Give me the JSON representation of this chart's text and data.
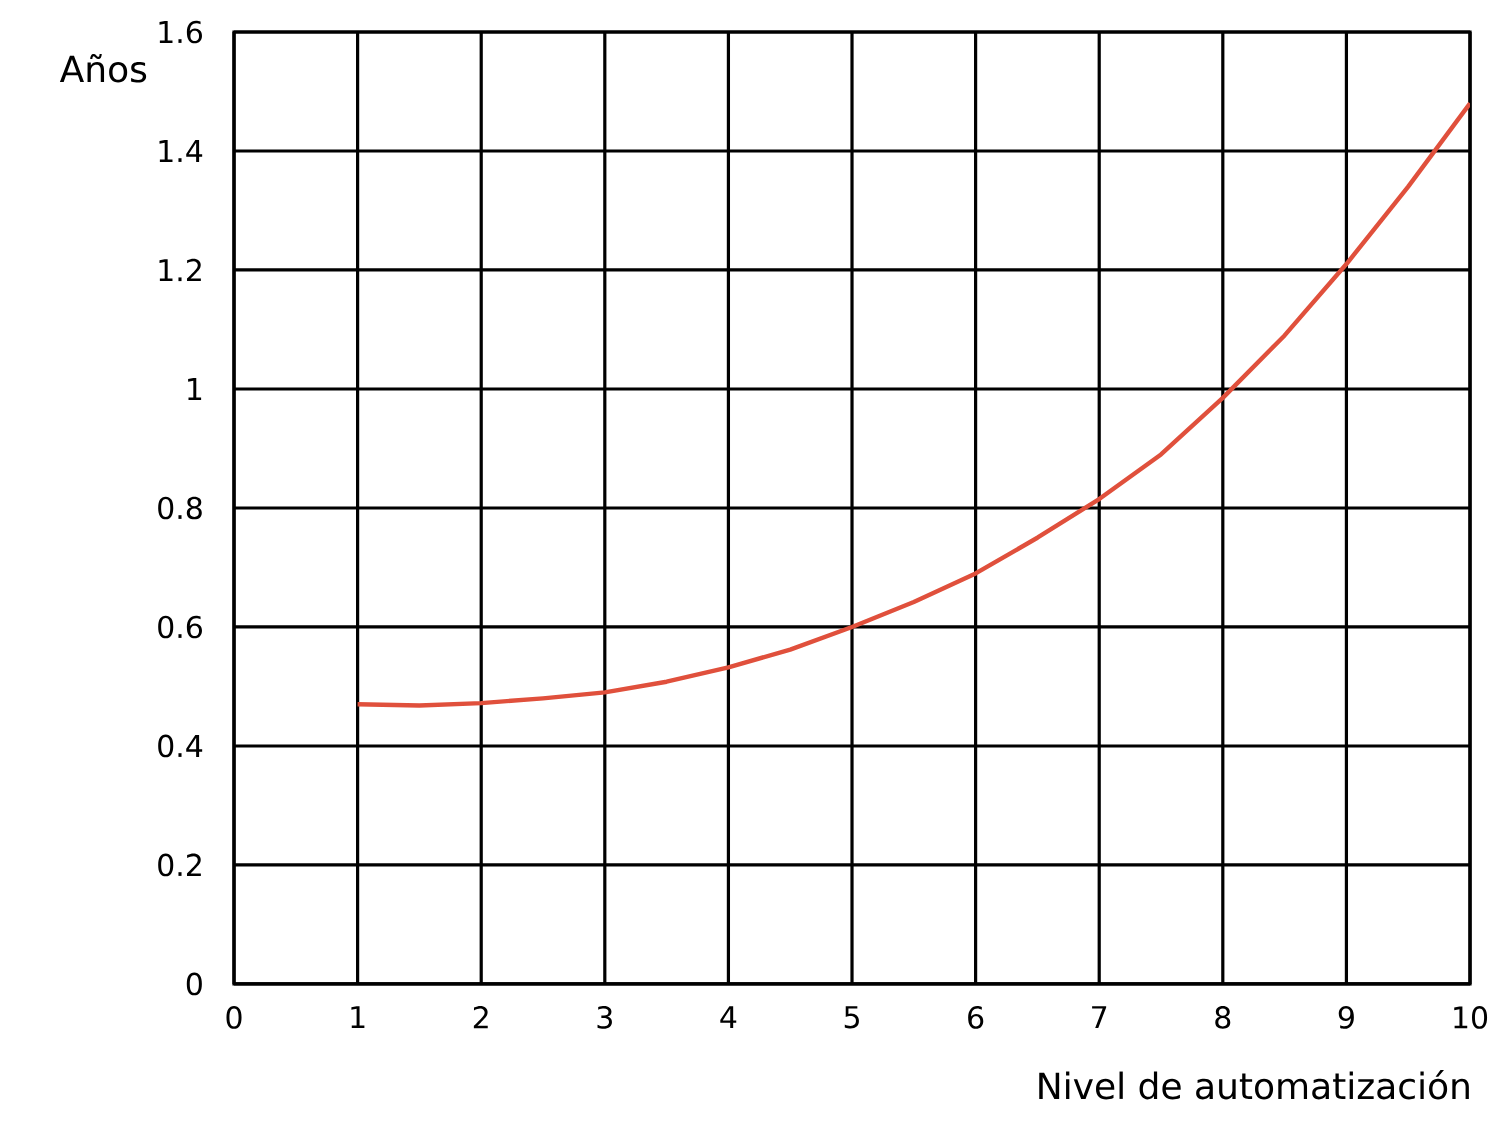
{
  "chart_data": {
    "type": "line",
    "xlabel": "Nivel de automatización",
    "ylabel": "Años",
    "x": [
      1,
      1.5,
      2,
      2.5,
      3,
      3.5,
      4,
      4.5,
      5,
      5.5,
      6,
      6.5,
      7,
      7.5,
      8,
      8.5,
      9,
      9.5,
      10
    ],
    "series": [
      {
        "color": "#e0503c",
        "values": [
          0.47,
          0.468,
          0.472,
          0.48,
          0.49,
          0.508,
          0.532,
          0.562,
          0.6,
          0.642,
          0.69,
          0.75,
          0.815,
          0.89,
          0.985,
          1.09,
          1.21,
          1.34,
          1.48
        ]
      }
    ],
    "xlim": [
      0,
      10
    ],
    "ylim": [
      0,
      1.6
    ],
    "xticks": [
      0,
      1,
      2,
      3,
      4,
      5,
      6,
      7,
      8,
      9,
      10
    ],
    "yticks": [
      0,
      0.2,
      0.4,
      0.6,
      0.8,
      1,
      1.2,
      1.4,
      1.6
    ],
    "grid": true,
    "marker": "none",
    "line_style": "solid"
  }
}
